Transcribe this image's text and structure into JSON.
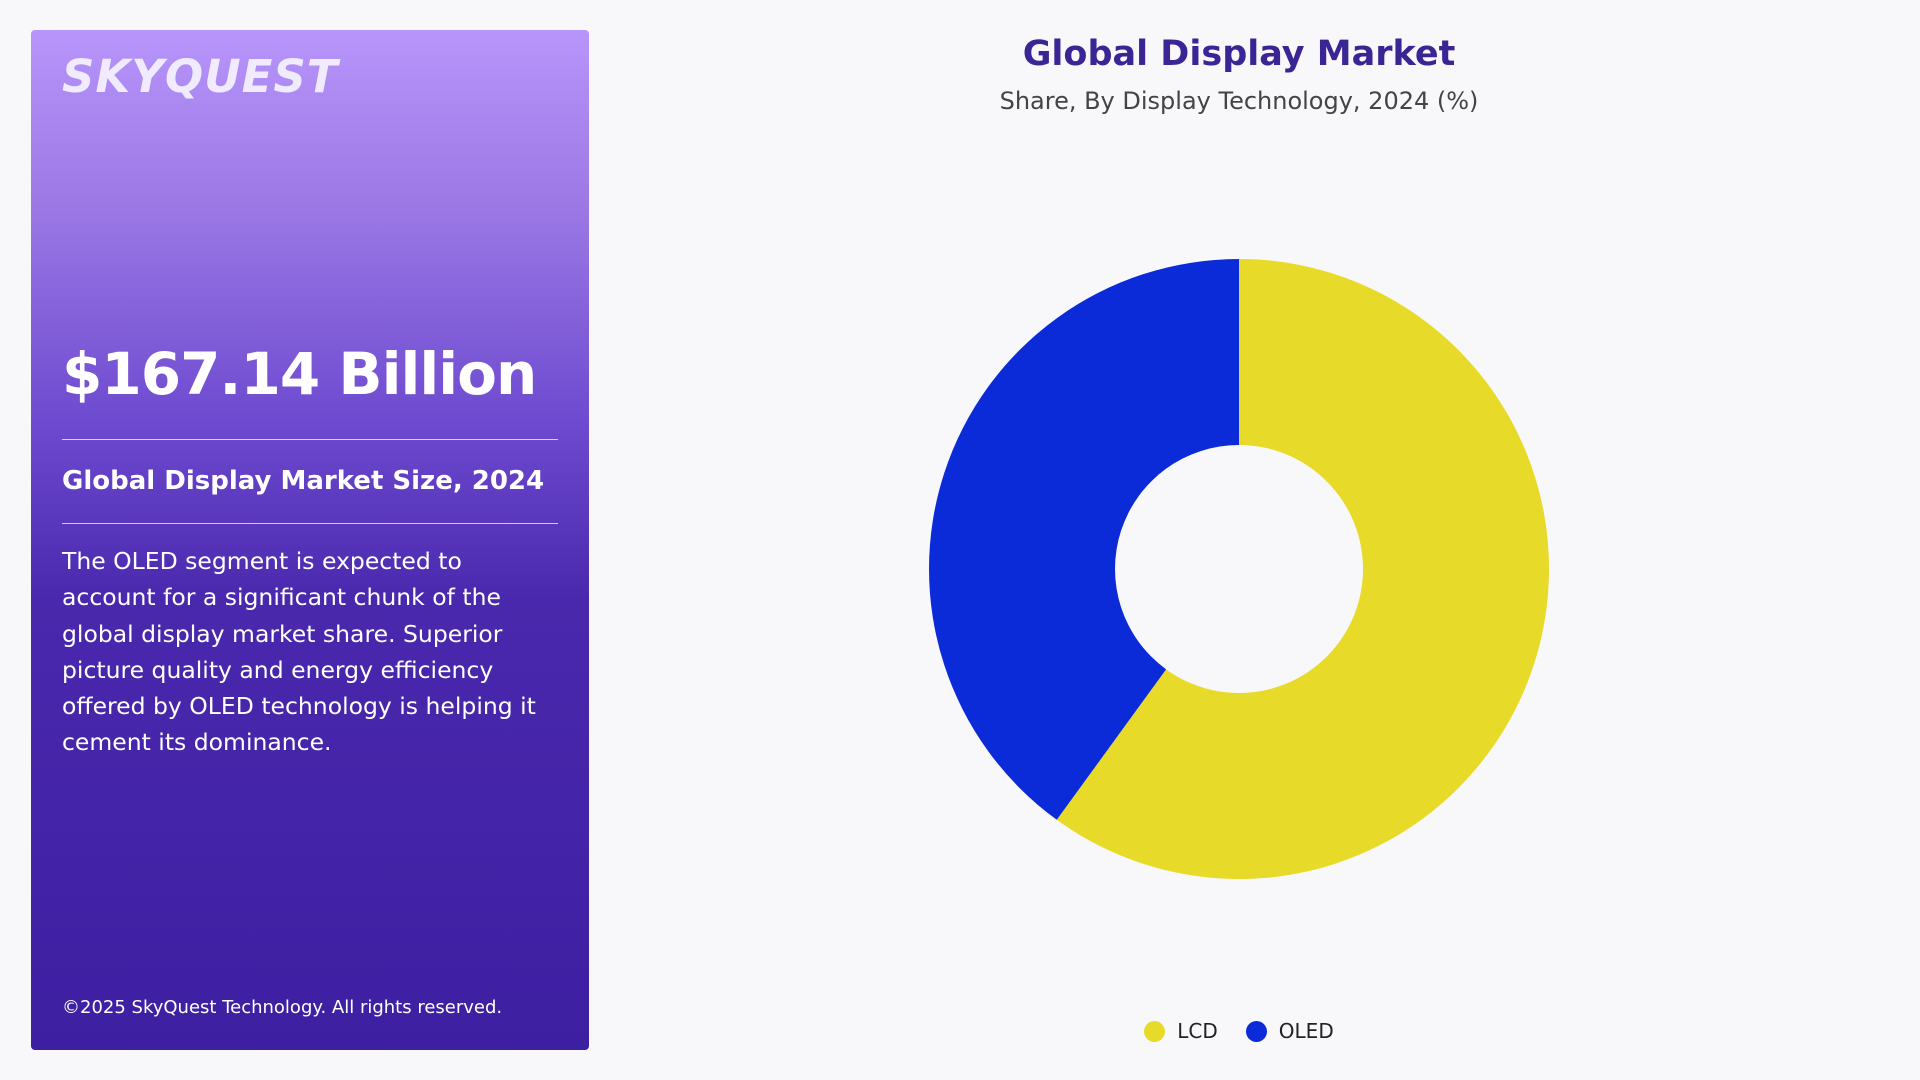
{
  "sidebar": {
    "logo_text": "SKYQUEST",
    "market_size": "$167.14 Billion",
    "market_size_label": "Global Display Market Size, 2024",
    "description": "The OLED segment is expected to account for a significant chunk of the global display market share. Superior picture quality and energy efficiency offered by OLED technology is helping it cement its dominance.",
    "copyright": "©2025 SkyQuest Technology. All rights reserved."
  },
  "colors": {
    "lcd": "#e8da28",
    "oled": "#0b2bd9",
    "title": "#3b2494",
    "panel_top": "#b795fa",
    "panel_bottom": "#3d1fa2"
  },
  "chart_data": {
    "type": "pie",
    "donut": true,
    "title": "Global Display Market",
    "subtitle": "Share, By Display Technology, 2024 (%)",
    "legend_position": "bottom-center",
    "series": [
      {
        "name": "LCD",
        "value": 60,
        "color": "#e8da28"
      },
      {
        "name": "OLED",
        "value": 40,
        "color": "#0b2bd9"
      }
    ]
  }
}
